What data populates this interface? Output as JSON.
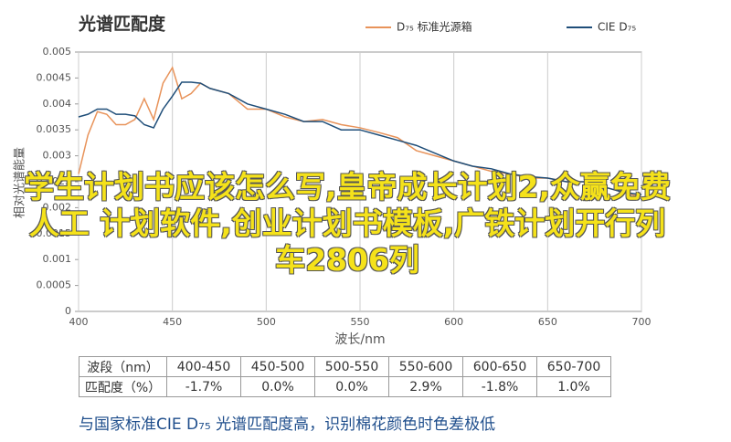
{
  "chart_data": {
    "type": "line",
    "title": "光谱匹配度",
    "xlabel": "波长/nm",
    "ylabel": "相对光谱能量",
    "x": [
      400,
      405,
      410,
      415,
      420,
      425,
      430,
      435,
      440,
      445,
      450,
      455,
      460,
      465,
      470,
      480,
      490,
      500,
      510,
      520,
      530,
      540,
      550,
      560,
      570,
      580,
      590,
      600,
      610,
      620,
      630,
      640,
      650,
      660,
      670,
      680,
      690,
      700
    ],
    "series": [
      {
        "name": "D₇₅ 标准光源箱",
        "color": "#e8935a",
        "values": [
          0.00265,
          0.0034,
          0.00385,
          0.0038,
          0.0036,
          0.0036,
          0.0037,
          0.0041,
          0.0037,
          0.0044,
          0.0047,
          0.0041,
          0.0042,
          0.0044,
          0.0043,
          0.0042,
          0.0039,
          0.0039,
          0.00375,
          0.00366,
          0.0037,
          0.0036,
          0.00354,
          0.00345,
          0.00335,
          0.0031,
          0.003,
          0.0029,
          0.0028,
          0.0027,
          0.00265,
          0.00257,
          0.00257,
          0.0025,
          0.0025,
          0.0024,
          0.0023,
          0.0022
        ]
      },
      {
        "name": "CIE D₇₅",
        "color": "#1f4e79",
        "values": [
          0.00375,
          0.0038,
          0.0039,
          0.0039,
          0.0038,
          0.0038,
          0.00377,
          0.0036,
          0.00354,
          0.0039,
          0.00415,
          0.00442,
          0.00442,
          0.0044,
          0.0043,
          0.0042,
          0.004,
          0.0039,
          0.0038,
          0.00366,
          0.00366,
          0.0035,
          0.0035,
          0.0034,
          0.0033,
          0.0032,
          0.00305,
          0.0029,
          0.0028,
          0.00275,
          0.00265,
          0.0026,
          0.00257,
          0.0025,
          0.0025,
          0.0024,
          0.0023,
          0.00225
        ]
      }
    ],
    "xlim": [
      400,
      700
    ],
    "xticks": [
      400,
      450,
      500,
      550,
      600,
      650,
      700
    ],
    "ylim": [
      0,
      0.005
    ],
    "yticks": [
      0,
      0.0005,
      0.001,
      0.0015,
      0.002,
      0.0025,
      0.003,
      0.0035,
      0.004,
      0.0045,
      0.005
    ],
    "grid": true,
    "legend": "top-right"
  },
  "overlay": "学生计划书应该怎么写,皇帝成长计划2,众赢免费人工 计划软件,创业计划书模板,广铁计划开行列车2806列",
  "table": {
    "rows": [
      [
        "波段（nm）",
        "400-450",
        "450-500",
        "500-550",
        "550-600",
        "600-650",
        "650-700"
      ],
      [
        "匹配度（%）",
        "-1.7%",
        "0.0%",
        "0.0%",
        "2.9%",
        "-1.8%",
        "1.0%"
      ]
    ]
  },
  "caption": "与国家标准CIE D₇₅ 光谱匹配度高，识别棉花颜色时色差极低"
}
